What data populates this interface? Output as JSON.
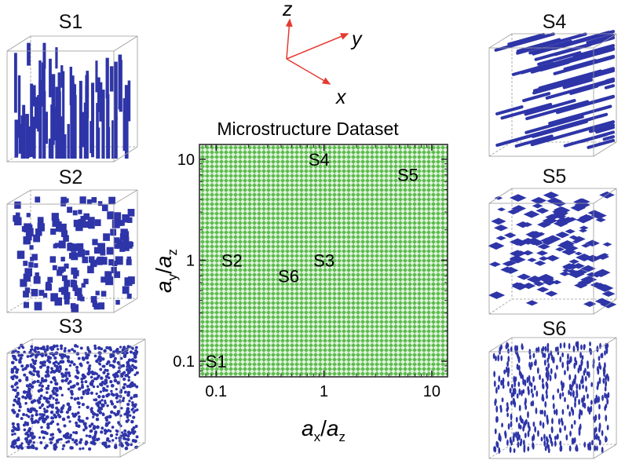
{
  "chart_data": {
    "type": "scatter",
    "title": "Microstructure Dataset",
    "xscale": "log",
    "yscale": "log",
    "xlim": [
      0.07,
      14
    ],
    "ylim": [
      0.07,
      14
    ],
    "xticks": [
      {
        "value": 0.1,
        "label": "0.1"
      },
      {
        "value": 1,
        "label": "1"
      },
      {
        "value": 10,
        "label": "10"
      }
    ],
    "yticks": [
      {
        "value": 0.1,
        "label": "0.1"
      },
      {
        "value": 1,
        "label": "1"
      },
      {
        "value": 10,
        "label": "10"
      }
    ],
    "xlabel": {
      "a": "a",
      "sub1": "x",
      "slash": "/",
      "b": "a",
      "sub2": "z"
    },
    "ylabel": {
      "a": "a",
      "sub1": "y",
      "slash": "/",
      "b": "a",
      "sub2": "z"
    },
    "fill_color": "#5cbc4c",
    "points": [
      {
        "label": "S1",
        "x": 0.1,
        "y": 0.1
      },
      {
        "label": "S2",
        "x": 0.14,
        "y": 1.0
      },
      {
        "label": "S3",
        "x": 1.0,
        "y": 1.0
      },
      {
        "label": "S4",
        "x": 0.9,
        "y": 10.0
      },
      {
        "label": "S5",
        "x": 6.0,
        "y": 7.0
      },
      {
        "label": "S6",
        "x": 0.47,
        "y": 0.7
      }
    ]
  },
  "axes_diagram": {
    "x": "x",
    "y": "y",
    "z": "z",
    "color": "#e53a2f"
  },
  "panels": [
    {
      "label": "S1",
      "kind": "vertical-rods"
    },
    {
      "label": "S2",
      "kind": "square-plates"
    },
    {
      "label": "S3",
      "kind": "spheres"
    },
    {
      "label": "S4",
      "kind": "horizontal-rods"
    },
    {
      "label": "S5",
      "kind": "flat-disks"
    },
    {
      "label": "S6",
      "kind": "vertical-ellipsoids"
    }
  ],
  "particle_color": "#2e35a8"
}
